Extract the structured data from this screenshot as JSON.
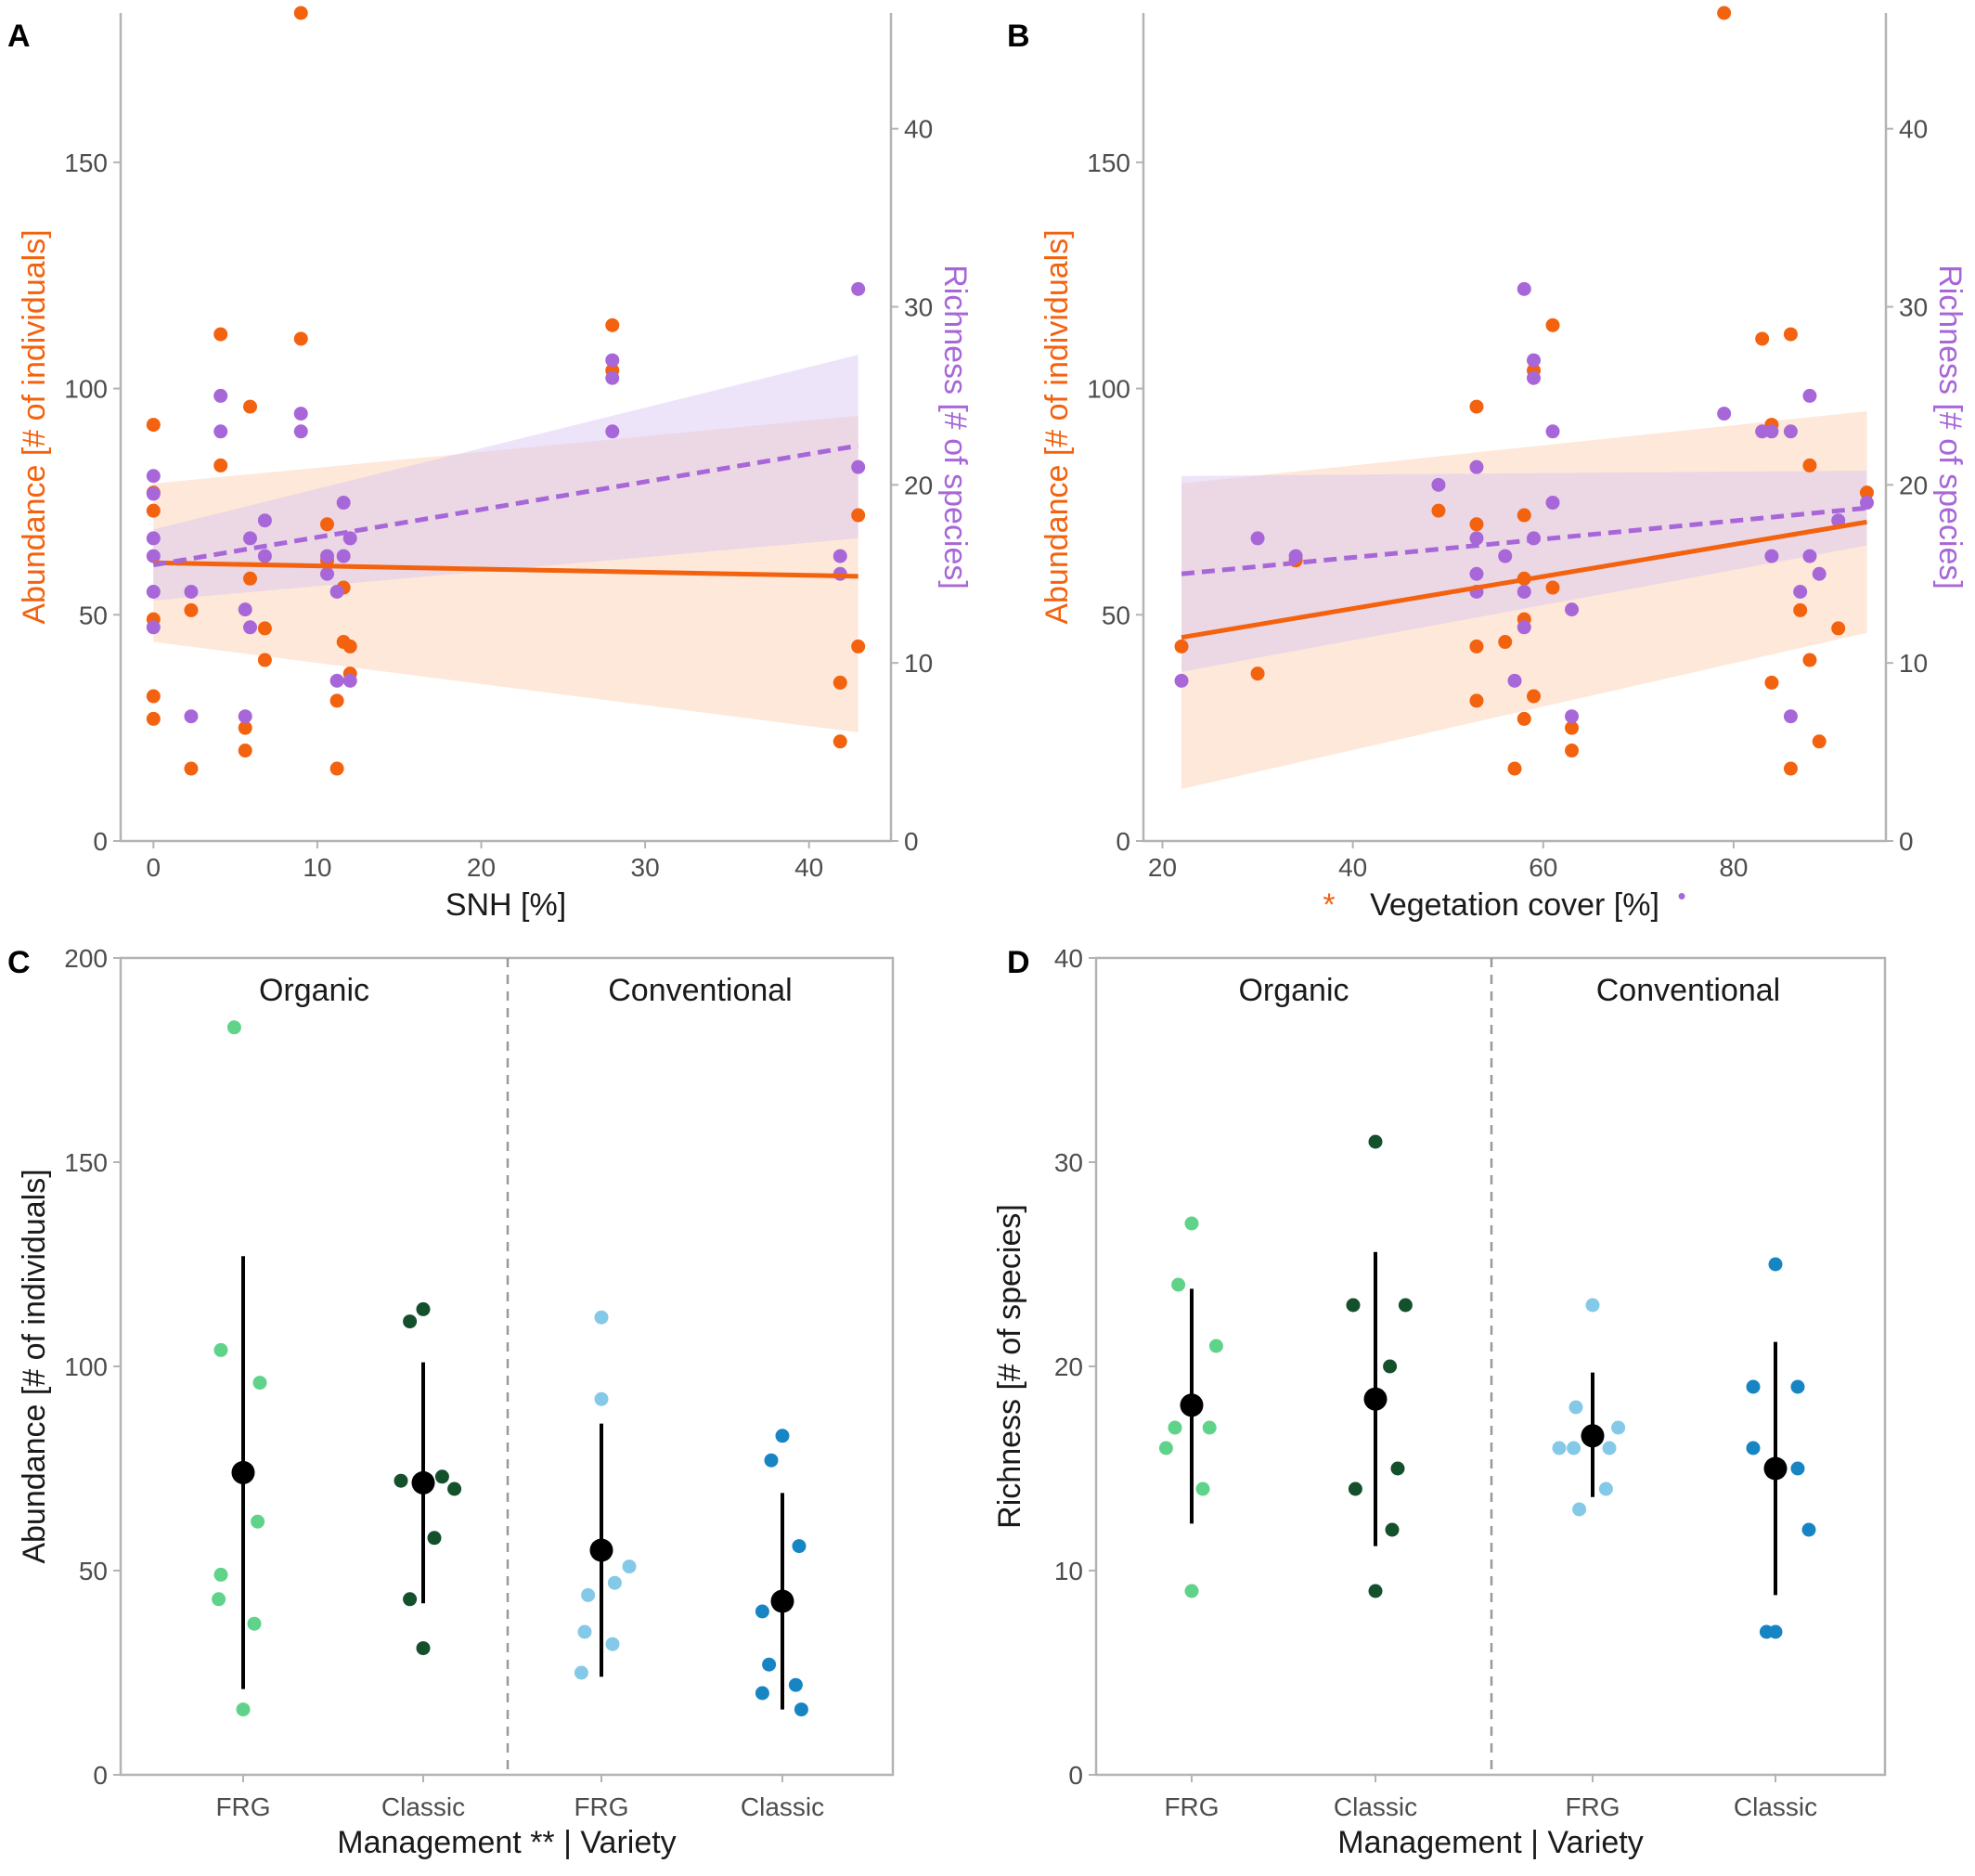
{
  "colors": {
    "abundance": "#f3620f",
    "richness": "#a867d8",
    "abundance_band": "#fdd9c0",
    "richness_band": "#d7c4f3",
    "org_frg": "#5fd38a",
    "org_classic": "#14502c",
    "conv_frg": "#84c9e7",
    "conv_classic": "#1784c4",
    "mean": "#000000",
    "frame": "#b3b3b3",
    "divider": "#999999"
  },
  "chart_data": [
    {
      "panel": "A",
      "type": "scatter",
      "xlabel": "SNH [%]",
      "ylabel": "Abundance [# of individuals]",
      "y2label": "Richness [# of species]",
      "xlim": [
        -2,
        45
      ],
      "ylim": [
        0,
        183
      ],
      "y2lim": [
        0,
        46.5
      ],
      "xticks": [
        0,
        10,
        20,
        30,
        40
      ],
      "yticks": [
        0,
        50,
        100,
        150
      ],
      "y2ticks": [
        0,
        10,
        20,
        30,
        40
      ],
      "abundance": {
        "points": [
          [
            0,
            92
          ],
          [
            0,
            77
          ],
          [
            0,
            73
          ],
          [
            0,
            49
          ],
          [
            0,
            32
          ],
          [
            0,
            27
          ],
          [
            2.3,
            51
          ],
          [
            2.3,
            16
          ],
          [
            4.1,
            112
          ],
          [
            4.1,
            83
          ],
          [
            5.6,
            25
          ],
          [
            5.6,
            20
          ],
          [
            5.9,
            96
          ],
          [
            5.9,
            58
          ],
          [
            6.8,
            47
          ],
          [
            6.8,
            40
          ],
          [
            9,
            183
          ],
          [
            9,
            111
          ],
          [
            10.6,
            70
          ],
          [
            10.6,
            62
          ],
          [
            11.2,
            31
          ],
          [
            11.2,
            16
          ],
          [
            11.6,
            56
          ],
          [
            11.6,
            44
          ],
          [
            12,
            43
          ],
          [
            12,
            37
          ],
          [
            28,
            114
          ],
          [
            28,
            104
          ],
          [
            41.9,
            35
          ],
          [
            41.9,
            22
          ],
          [
            43,
            72
          ],
          [
            43,
            43
          ]
        ],
        "fit": {
          "style": "solid",
          "x": [
            0,
            43
          ],
          "y": [
            61.5,
            58.5
          ]
        },
        "ci": {
          "x": [
            0,
            43
          ],
          "upper": [
            79,
            94
          ],
          "lower": [
            44,
            24
          ]
        }
      },
      "richness": {
        "points": [
          [
            0,
            19.5
          ],
          [
            0,
            17
          ],
          [
            0,
            16
          ],
          [
            0,
            14
          ],
          [
            0,
            12
          ],
          [
            0,
            20.5
          ],
          [
            2.3,
            14
          ],
          [
            2.3,
            7
          ],
          [
            4.1,
            25
          ],
          [
            4.1,
            23
          ],
          [
            5.6,
            13
          ],
          [
            5.6,
            7
          ],
          [
            5.9,
            17
          ],
          [
            5.9,
            12
          ],
          [
            6.8,
            18
          ],
          [
            6.8,
            16
          ],
          [
            9,
            24
          ],
          [
            9,
            23
          ],
          [
            10.6,
            16
          ],
          [
            10.6,
            15
          ],
          [
            11.2,
            14
          ],
          [
            11.2,
            9
          ],
          [
            11.6,
            19
          ],
          [
            11.6,
            16
          ],
          [
            12,
            17
          ],
          [
            12,
            9
          ],
          [
            28,
            27
          ],
          [
            28,
            26
          ],
          [
            28,
            23
          ],
          [
            41.9,
            16
          ],
          [
            41.9,
            15
          ],
          [
            43,
            31
          ],
          [
            43,
            21
          ]
        ],
        "fit": {
          "style": "dashed",
          "x": [
            0,
            43
          ],
          "y": [
            15.5,
            22.2
          ]
        },
        "ci": {
          "x": [
            0,
            43
          ],
          "upper": [
            17.5,
            27.3
          ],
          "lower": [
            13.5,
            17
          ]
        }
      }
    },
    {
      "panel": "B",
      "type": "scatter",
      "xlabel": "Vegetation cover [%]",
      "xlabel_prefix": "*",
      "xlabel_suffix": "•",
      "ylabel": "Abundance [# of individuals]",
      "y2label": "Richness [# of species]",
      "xlim": [
        18,
        96
      ],
      "ylim": [
        0,
        183
      ],
      "y2lim": [
        0,
        46.5
      ],
      "xticks": [
        20,
        40,
        60,
        80
      ],
      "yticks": [
        0,
        50,
        100,
        150
      ],
      "y2ticks": [
        0,
        10,
        20,
        30,
        40
      ],
      "abundance": {
        "points": [
          [
            22,
            43
          ],
          [
            30,
            37
          ],
          [
            34,
            62
          ],
          [
            49,
            73
          ],
          [
            53,
            96
          ],
          [
            53,
            70
          ],
          [
            53,
            43
          ],
          [
            53,
            31
          ],
          [
            56,
            44
          ],
          [
            57,
            16
          ],
          [
            58,
            72
          ],
          [
            58,
            49
          ],
          [
            58,
            58
          ],
          [
            58,
            27
          ],
          [
            59,
            104
          ],
          [
            59,
            32
          ],
          [
            61,
            114
          ],
          [
            61,
            56
          ],
          [
            63,
            25
          ],
          [
            63,
            20
          ],
          [
            79,
            183
          ],
          [
            83,
            111
          ],
          [
            84,
            92
          ],
          [
            84,
            35
          ],
          [
            86,
            112
          ],
          [
            86,
            16
          ],
          [
            87,
            51
          ],
          [
            88,
            83
          ],
          [
            88,
            40
          ],
          [
            89,
            22
          ],
          [
            91,
            47
          ],
          [
            94,
            77
          ]
        ],
        "fit": {
          "style": "solid",
          "x": [
            22,
            94
          ],
          "y": [
            45,
            70.5
          ]
        },
        "ci": {
          "x": [
            22,
            94
          ],
          "upper": [
            79,
            95
          ],
          "lower": [
            11.5,
            46
          ]
        }
      },
      "richness": {
        "points": [
          [
            22,
            9
          ],
          [
            30,
            17
          ],
          [
            34,
            16
          ],
          [
            49,
            20
          ],
          [
            53,
            21
          ],
          [
            53,
            17
          ],
          [
            53,
            15
          ],
          [
            53,
            14
          ],
          [
            56,
            16
          ],
          [
            57,
            9
          ],
          [
            58,
            31
          ],
          [
            58,
            14
          ],
          [
            58,
            12
          ],
          [
            59,
            27
          ],
          [
            59,
            26
          ],
          [
            59,
            17
          ],
          [
            61,
            23
          ],
          [
            61,
            19
          ],
          [
            63,
            13
          ],
          [
            63,
            7
          ],
          [
            79,
            24
          ],
          [
            83,
            23
          ],
          [
            84,
            23
          ],
          [
            84,
            16
          ],
          [
            86,
            23
          ],
          [
            86,
            7
          ],
          [
            87,
            14
          ],
          [
            88,
            25
          ],
          [
            88,
            16
          ],
          [
            89,
            15
          ],
          [
            91,
            18
          ],
          [
            94,
            19
          ]
        ],
        "fit": {
          "style": "dashed",
          "x": [
            22,
            94
          ],
          "y": [
            15,
            18.7
          ]
        },
        "ci": {
          "x": [
            22,
            94
          ],
          "upper": [
            20.5,
            20.8
          ],
          "lower": [
            9.5,
            16.6
          ]
        }
      }
    },
    {
      "panel": "C",
      "type": "scatter",
      "xlabel": "Management ** | Variety",
      "ylabel": "Abundance [# of individuals]",
      "ylim": [
        0,
        200
      ],
      "yticks": [
        0,
        50,
        100,
        150,
        200
      ],
      "categories": [
        "FRG",
        "Classic",
        "FRG",
        "Classic"
      ],
      "management": [
        "Organic",
        "Conventional"
      ],
      "groups": [
        {
          "management": "Organic",
          "variety": "FRG",
          "color_key": "org_frg",
          "mean": 74,
          "ci": [
            21,
            127
          ],
          "points": [
            [
              -0.08,
              183
            ],
            [
              -0.2,
              104
            ],
            [
              0.15,
              96
            ],
            [
              0.13,
              62
            ],
            [
              -0.2,
              49
            ],
            [
              -0.22,
              43
            ],
            [
              0.1,
              37
            ],
            [
              0,
              16
            ]
          ]
        },
        {
          "management": "Organic",
          "variety": "Classic",
          "color_key": "org_classic",
          "mean": 71.5,
          "ci": [
            42,
            101
          ],
          "points": [
            [
              -0.12,
              111
            ],
            [
              0,
              114
            ],
            [
              -0.2,
              72
            ],
            [
              0.17,
              73
            ],
            [
              0.28,
              70
            ],
            [
              0.1,
              58
            ],
            [
              -0.12,
              43
            ],
            [
              0,
              31
            ]
          ]
        },
        {
          "management": "Conventional",
          "variety": "FRG",
          "color_key": "conv_frg",
          "mean": 55,
          "ci": [
            24,
            86
          ],
          "points": [
            [
              0,
              112
            ],
            [
              0,
              92
            ],
            [
              0.25,
              51
            ],
            [
              0.12,
              47
            ],
            [
              -0.12,
              44
            ],
            [
              -0.15,
              35
            ],
            [
              0.1,
              32
            ],
            [
              -0.18,
              25
            ]
          ]
        },
        {
          "management": "Conventional",
          "variety": "Classic",
          "color_key": "conv_classic",
          "mean": 42.5,
          "ci": [
            16,
            69
          ],
          "points": [
            [
              0,
              83
            ],
            [
              -0.1,
              77
            ],
            [
              0.15,
              56
            ],
            [
              -0.18,
              40
            ],
            [
              -0.12,
              27
            ],
            [
              0.12,
              22
            ],
            [
              -0.18,
              20
            ],
            [
              0.17,
              16
            ]
          ]
        }
      ]
    },
    {
      "panel": "D",
      "type": "scatter",
      "xlabel": "Management | Variety",
      "ylabel": "Richness [# of species]",
      "ylim": [
        0,
        40
      ],
      "yticks": [
        0,
        10,
        20,
        30,
        40
      ],
      "categories": [
        "FRG",
        "Classic",
        "FRG",
        "Classic"
      ],
      "management": [
        "Organic",
        "Conventional"
      ],
      "groups": [
        {
          "management": "Organic",
          "variety": "FRG",
          "color_key": "org_frg",
          "mean": 18.1,
          "ci": [
            12.3,
            23.8
          ],
          "points": [
            [
              0,
              27
            ],
            [
              -0.12,
              24
            ],
            [
              0.22,
              21
            ],
            [
              -0.15,
              17
            ],
            [
              0.16,
              17
            ],
            [
              -0.23,
              16
            ],
            [
              0.1,
              14
            ],
            [
              0,
              9
            ]
          ]
        },
        {
          "management": "Organic",
          "variety": "Classic",
          "color_key": "org_classic",
          "mean": 18.4,
          "ci": [
            11.2,
            25.6
          ],
          "points": [
            [
              0,
              31
            ],
            [
              -0.2,
              23
            ],
            [
              0.27,
              23
            ],
            [
              0.13,
              20
            ],
            [
              0.2,
              15
            ],
            [
              -0.18,
              14
            ],
            [
              0.15,
              12
            ],
            [
              0,
              9
            ]
          ]
        },
        {
          "management": "Conventional",
          "variety": "FRG",
          "color_key": "conv_frg",
          "mean": 16.6,
          "ci": [
            13.6,
            19.7
          ],
          "points": [
            [
              0,
              23
            ],
            [
              -0.15,
              18
            ],
            [
              0.23,
              17
            ],
            [
              -0.3,
              16
            ],
            [
              -0.17,
              16
            ],
            [
              0.15,
              16
            ],
            [
              0.12,
              14
            ],
            [
              -0.12,
              13
            ]
          ]
        },
        {
          "management": "Conventional",
          "variety": "Classic",
          "color_key": "conv_classic",
          "mean": 15,
          "ci": [
            8.8,
            21.2
          ],
          "points": [
            [
              0,
              25
            ],
            [
              -0.2,
              19
            ],
            [
              0.2,
              19
            ],
            [
              -0.2,
              16
            ],
            [
              0.2,
              15
            ],
            [
              0.3,
              12
            ],
            [
              -0.08,
              7
            ],
            [
              0,
              7
            ]
          ]
        }
      ]
    }
  ]
}
